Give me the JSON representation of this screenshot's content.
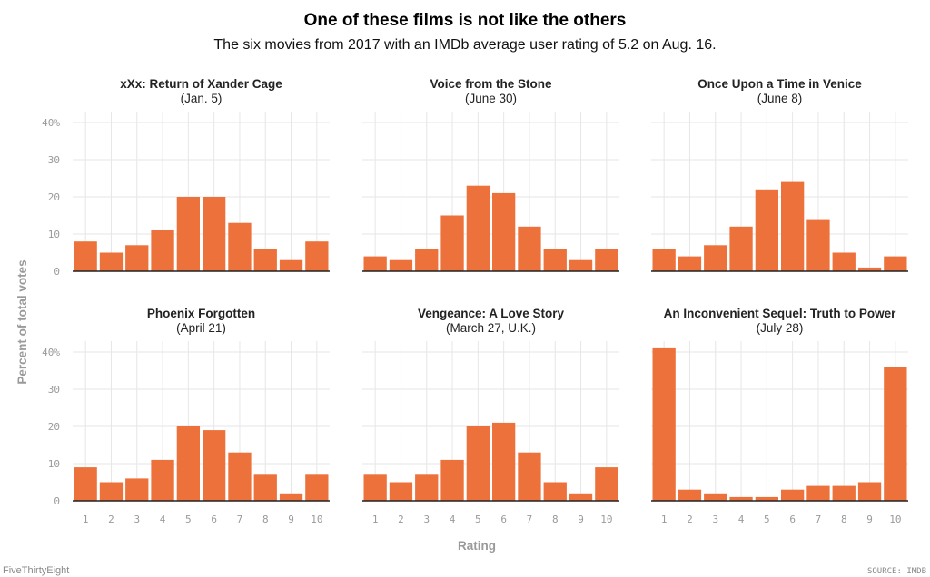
{
  "title": "One of these films is not like the others",
  "subtitle": "The six movies from 2017 with an IMDb average user rating of 5.2 on Aug. 16.",
  "footer": {
    "left": "FiveThirtyEight",
    "right": "SOURCE: IMDB"
  },
  "colors": {
    "bar": "#ED713A",
    "grid": "#E6E6E6",
    "axis_text": "#9A9A9A"
  },
  "chart_data": [
    {
      "type": "bar",
      "title": "xXx: Return of Xander Cage",
      "subtitle": "(Jan. 5)",
      "categories": [
        "1",
        "2",
        "3",
        "4",
        "5",
        "6",
        "7",
        "8",
        "9",
        "10"
      ],
      "values": [
        8,
        5,
        7,
        11,
        20,
        20,
        13,
        6,
        3,
        8
      ],
      "ylim": [
        0,
        40
      ],
      "yticks": [
        "0",
        "10",
        "20",
        "30",
        "40%"
      ],
      "xlabel": "Rating",
      "ylabel": "Percent of total votes",
      "grid": true
    },
    {
      "type": "bar",
      "title": "Voice from the Stone",
      "subtitle": "(June 30)",
      "categories": [
        "1",
        "2",
        "3",
        "4",
        "5",
        "6",
        "7",
        "8",
        "9",
        "10"
      ],
      "values": [
        4,
        3,
        6,
        15,
        23,
        21,
        12,
        6,
        3,
        6
      ],
      "ylim": [
        0,
        40
      ],
      "yticks": [
        "0",
        "10",
        "20",
        "30",
        "40%"
      ],
      "xlabel": "Rating",
      "ylabel": "Percent of total votes",
      "grid": true
    },
    {
      "type": "bar",
      "title": "Once Upon a Time in Venice",
      "subtitle": "(June 8)",
      "categories": [
        "1",
        "2",
        "3",
        "4",
        "5",
        "6",
        "7",
        "8",
        "9",
        "10"
      ],
      "values": [
        6,
        4,
        7,
        12,
        22,
        24,
        14,
        5,
        1,
        4
      ],
      "ylim": [
        0,
        40
      ],
      "yticks": [
        "0",
        "10",
        "20",
        "30",
        "40%"
      ],
      "xlabel": "Rating",
      "ylabel": "Percent of total votes",
      "grid": true
    },
    {
      "type": "bar",
      "title": "Phoenix Forgotten",
      "subtitle": "(April 21)",
      "categories": [
        "1",
        "2",
        "3",
        "4",
        "5",
        "6",
        "7",
        "8",
        "9",
        "10"
      ],
      "values": [
        9,
        5,
        6,
        11,
        20,
        19,
        13,
        7,
        2,
        7
      ],
      "ylim": [
        0,
        40
      ],
      "yticks": [
        "0",
        "10",
        "20",
        "30",
        "40%"
      ],
      "xlabel": "Rating",
      "ylabel": "Percent of total votes",
      "grid": true
    },
    {
      "type": "bar",
      "title": "Vengeance: A Love Story",
      "subtitle": "(March 27, U.K.)",
      "categories": [
        "1",
        "2",
        "3",
        "4",
        "5",
        "6",
        "7",
        "8",
        "9",
        "10"
      ],
      "values": [
        7,
        5,
        7,
        11,
        20,
        21,
        13,
        5,
        2,
        9
      ],
      "ylim": [
        0,
        40
      ],
      "yticks": [
        "0",
        "10",
        "20",
        "30",
        "40%"
      ],
      "xlabel": "Rating",
      "ylabel": "Percent of total votes",
      "grid": true
    },
    {
      "type": "bar",
      "title": "An Inconvenient Sequel: Truth to Power",
      "subtitle": "(July 28)",
      "categories": [
        "1",
        "2",
        "3",
        "4",
        "5",
        "6",
        "7",
        "8",
        "9",
        "10"
      ],
      "values": [
        41,
        3,
        2,
        1,
        1,
        3,
        4,
        4,
        5,
        36
      ],
      "ylim": [
        0,
        40
      ],
      "yticks": [
        "0",
        "10",
        "20",
        "30",
        "40%"
      ],
      "xlabel": "Rating",
      "ylabel": "Percent of total votes",
      "grid": true
    }
  ]
}
